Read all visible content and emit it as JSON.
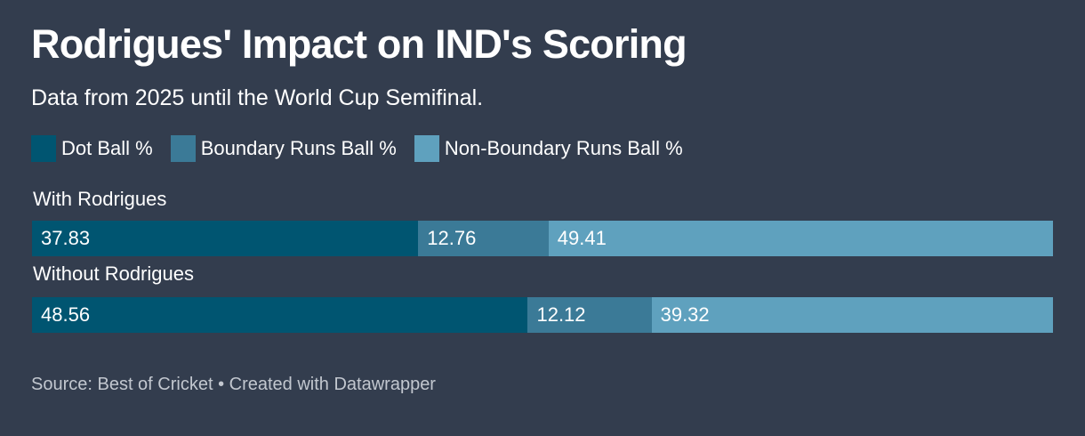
{
  "title": "Rodrigues' Impact on IND's Scoring",
  "subtitle": "Data from 2025 until the World Cup Semifinal.",
  "source": "Source: Best of Cricket • Created with Datawrapper",
  "chart_data": {
    "type": "bar",
    "orientation": "horizontal",
    "stacked": true,
    "categories": [
      "With Rodrigues",
      "Without Rodrigues"
    ],
    "series": [
      {
        "name": "Dot Ball %",
        "color": "#005571",
        "values": [
          37.83,
          48.56
        ],
        "labels": [
          "37.83",
          "48.56"
        ]
      },
      {
        "name": "Boundary Runs Ball %",
        "color": "#3b7a97",
        "values": [
          12.76,
          12.12
        ],
        "labels": [
          "12.76",
          "12.12"
        ]
      },
      {
        "name": "Non-Boundary Runs Ball %",
        "color": "#5fa1be",
        "values": [
          49.41,
          39.32
        ],
        "labels": [
          "49.41",
          "39.32"
        ]
      }
    ],
    "legend_position": "top",
    "grid": false
  }
}
